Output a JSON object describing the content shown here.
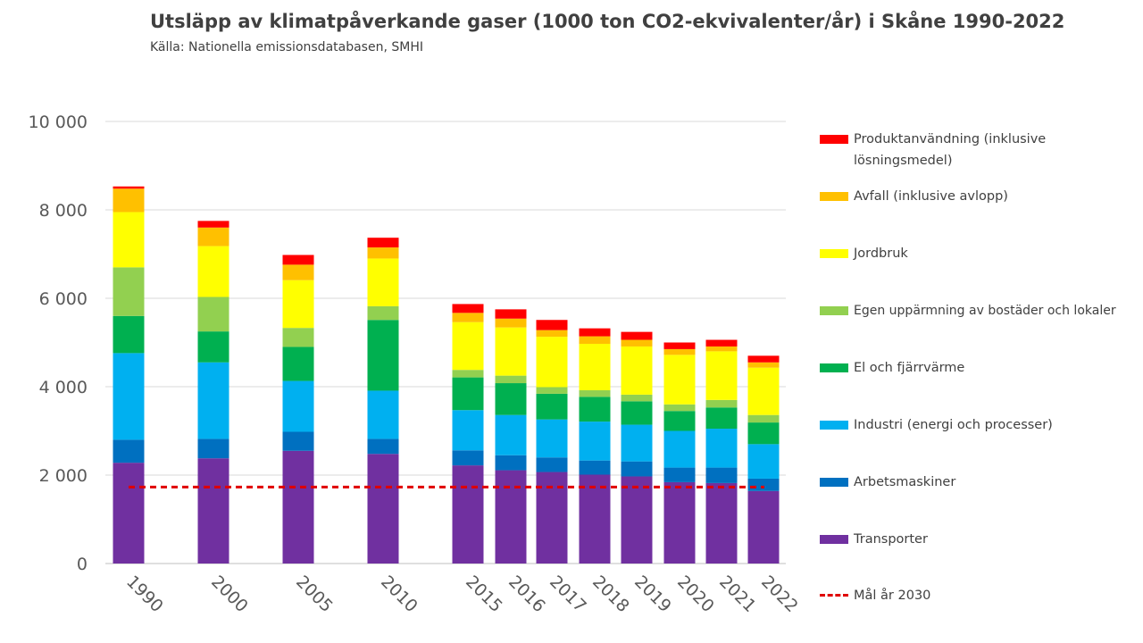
{
  "header": {
    "title": "Utsläpp av klimatpåverkande gaser (1000 ton CO2-ekvivalenter/år) i Skåne 1990-2022",
    "subtitle": "Källa: Nationella emissionsdatabasen, SMHI"
  },
  "chart_data": {
    "type": "bar",
    "stacked": true,
    "title": "Utsläpp av klimatpåverkande gaser (1000 ton CO2-ekvivalenter/år) i Skåne 1990-2022",
    "subtitle": "Källa: Nationella emissionsdatabasen, SMHI",
    "categories": [
      "1990",
      "2000",
      "2005",
      "2010",
      "2015",
      "2016",
      "2017",
      "2018",
      "2019",
      "2020",
      "2021",
      "2022"
    ],
    "ylim": [
      0,
      10000
    ],
    "yticks": [
      0,
      2000,
      4000,
      6000,
      8000,
      10000
    ],
    "ytick_labels": [
      "0",
      "2 000",
      "4 000",
      "6 000",
      "8 000",
      "10 000"
    ],
    "grid": true,
    "legend_position": "right",
    "series": [
      {
        "name": "Transporter",
        "color": "#7030a0",
        "values": [
          2280,
          2380,
          2550,
          2480,
          2220,
          2110,
          2070,
          2010,
          1970,
          1840,
          1820,
          1640
        ]
      },
      {
        "name": "Arbetsmaskiner",
        "color": "#0070c0",
        "values": [
          520,
          440,
          430,
          340,
          340,
          340,
          330,
          320,
          340,
          330,
          350,
          280
        ]
      },
      {
        "name": "Industri (energi och processer)",
        "color": "#00b0f0",
        "values": [
          1960,
          1730,
          1150,
          1090,
          910,
          910,
          860,
          880,
          830,
          830,
          880,
          780
        ]
      },
      {
        "name": "El och fjärrvärme",
        "color": "#00b050",
        "values": [
          840,
          700,
          770,
          1600,
          740,
          720,
          580,
          560,
          530,
          450,
          480,
          490
        ]
      },
      {
        "name": "Egen uppärmning av bostäder och lokaler",
        "color": "#92d050",
        "values": [
          1100,
          780,
          430,
          310,
          170,
          170,
          150,
          150,
          150,
          150,
          170,
          170
        ]
      },
      {
        "name": "Jordbruk",
        "color": "#ffff00",
        "values": [
          1250,
          1150,
          1080,
          1080,
          1080,
          1090,
          1140,
          1050,
          1090,
          1120,
          1100,
          1070
        ]
      },
      {
        "name": "Avfall (inklusive avlopp)",
        "color": "#ffc000",
        "values": [
          530,
          420,
          350,
          250,
          210,
          200,
          150,
          170,
          150,
          130,
          110,
          120
        ]
      },
      {
        "name": "Produktanvändning (inklusive lösningsmedel)",
        "color": "#ff0000",
        "values": [
          50,
          150,
          220,
          220,
          200,
          210,
          230,
          180,
          180,
          150,
          150,
          150
        ]
      }
    ],
    "target_line": {
      "name": "Mål år 2030",
      "color": "#e00000",
      "value": 1730
    }
  }
}
